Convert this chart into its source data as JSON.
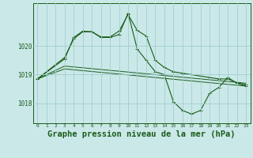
{
  "background_color": "#cbe8e8",
  "plot_bg_color": "#cbe8e8",
  "line_color": "#1a5c1a",
  "grid_color": "#9ecfcf",
  "xlabel": "Graphe pression niveau de la mer (hPa)",
  "xlabel_fontsize": 7.5,
  "xticks": [
    0,
    1,
    2,
    3,
    4,
    5,
    6,
    7,
    8,
    9,
    10,
    11,
    12,
    13,
    14,
    15,
    16,
    17,
    18,
    19,
    20,
    21,
    22,
    23
  ],
  "yticks": [
    1018,
    1019,
    1020
  ],
  "ylim": [
    1017.3,
    1021.5
  ],
  "xlim": [
    -0.5,
    23.5
  ],
  "series": [
    {
      "x": [
        0,
        3,
        4,
        5,
        6,
        7,
        8,
        9,
        10,
        11,
        12,
        13,
        14,
        15,
        16,
        17,
        18,
        19,
        20,
        21,
        22,
        23
      ],
      "y": [
        1018.85,
        1019.6,
        1020.25,
        1020.5,
        1020.5,
        1020.3,
        1020.3,
        1020.4,
        1021.15,
        1019.9,
        1019.5,
        1019.1,
        1019.0,
        1018.05,
        1017.75,
        1017.62,
        1017.75,
        1018.35,
        1018.55,
        1018.9,
        1018.7,
        1018.6
      ],
      "marker": true
    },
    {
      "x": [
        0,
        3,
        4,
        5,
        6,
        7,
        8,
        9,
        10,
        11,
        12,
        13,
        14,
        15,
        16,
        17,
        18,
        19,
        20,
        21,
        22,
        23
      ],
      "y": [
        1018.85,
        1019.55,
        1020.3,
        1020.52,
        1020.5,
        1020.32,
        1020.32,
        1020.52,
        1021.1,
        1020.55,
        1020.35,
        1019.5,
        1019.25,
        1019.1,
        1019.05,
        1019.0,
        1018.95,
        1018.9,
        1018.85,
        1018.85,
        1018.72,
        1018.65
      ],
      "marker": true
    },
    {
      "x": [
        0,
        3,
        23
      ],
      "y": [
        1018.85,
        1019.2,
        1018.6
      ],
      "marker": false
    },
    {
      "x": [
        0,
        3,
        23
      ],
      "y": [
        1018.85,
        1019.3,
        1018.7
      ],
      "marker": false
    }
  ]
}
